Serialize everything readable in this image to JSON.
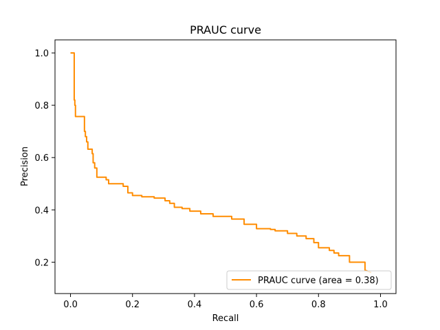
{
  "chart_data": {
    "type": "line",
    "title": "PRAUC curve",
    "xlabel": "Recall",
    "ylabel": "Precision",
    "xlim": [
      -0.05,
      1.05
    ],
    "ylim": [
      0.08,
      1.05
    ],
    "xticks": [
      0.0,
      0.2,
      0.4,
      0.6,
      0.8,
      1.0
    ],
    "xtick_labels": [
      "0.0",
      "0.2",
      "0.4",
      "0.6",
      "0.8",
      "1.0"
    ],
    "yticks": [
      0.2,
      0.4,
      0.6,
      0.8,
      1.0
    ],
    "ytick_labels": [
      "0.2",
      "0.4",
      "0.6",
      "0.8",
      "1.0"
    ],
    "grid": false,
    "legend_position": "lower right",
    "series": [
      {
        "name": "PRAUC curve (area = 0.38)",
        "color": "#ff8c00",
        "x": [
          0.0,
          0.012,
          0.012,
          0.014,
          0.014,
          0.016,
          0.016,
          0.045,
          0.045,
          0.048,
          0.048,
          0.052,
          0.052,
          0.056,
          0.056,
          0.07,
          0.07,
          0.073,
          0.073,
          0.078,
          0.078,
          0.085,
          0.085,
          0.115,
          0.115,
          0.123,
          0.123,
          0.17,
          0.17,
          0.185,
          0.185,
          0.2,
          0.2,
          0.23,
          0.23,
          0.27,
          0.27,
          0.305,
          0.305,
          0.32,
          0.32,
          0.335,
          0.335,
          0.36,
          0.36,
          0.385,
          0.385,
          0.42,
          0.42,
          0.46,
          0.46,
          0.52,
          0.52,
          0.56,
          0.56,
          0.6,
          0.6,
          0.645,
          0.645,
          0.66,
          0.66,
          0.7,
          0.7,
          0.73,
          0.73,
          0.76,
          0.76,
          0.785,
          0.785,
          0.8,
          0.8,
          0.835,
          0.835,
          0.85,
          0.85,
          0.865,
          0.865,
          0.9,
          0.9,
          0.95,
          0.95,
          0.97
        ],
        "y": [
          1.0,
          1.0,
          0.82,
          0.82,
          0.8,
          0.8,
          0.757,
          0.757,
          0.7,
          0.7,
          0.68,
          0.68,
          0.66,
          0.66,
          0.632,
          0.632,
          0.615,
          0.615,
          0.58,
          0.58,
          0.56,
          0.56,
          0.525,
          0.525,
          0.515,
          0.515,
          0.5,
          0.5,
          0.49,
          0.49,
          0.465,
          0.465,
          0.455,
          0.455,
          0.45,
          0.45,
          0.445,
          0.445,
          0.435,
          0.435,
          0.425,
          0.425,
          0.41,
          0.41,
          0.405,
          0.405,
          0.395,
          0.395,
          0.385,
          0.385,
          0.375,
          0.375,
          0.365,
          0.365,
          0.345,
          0.345,
          0.328,
          0.328,
          0.325,
          0.325,
          0.32,
          0.32,
          0.31,
          0.31,
          0.3,
          0.3,
          0.29,
          0.29,
          0.275,
          0.275,
          0.255,
          0.255,
          0.245,
          0.245,
          0.235,
          0.235,
          0.225,
          0.225,
          0.2,
          0.2,
          0.17,
          0.16
        ]
      }
    ]
  }
}
